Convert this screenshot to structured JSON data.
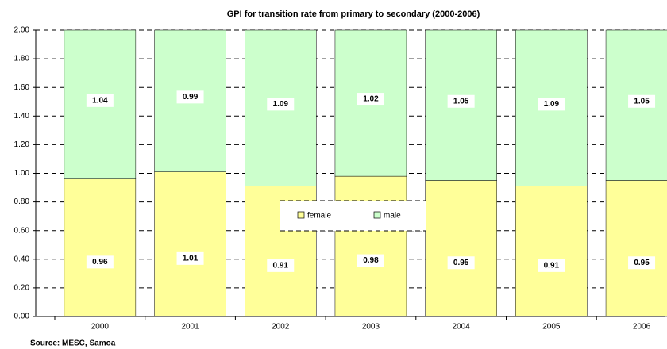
{
  "chart_data": {
    "type": "stacked_bar",
    "title": "GPI for transition rate from primary to secondary (2000-2006)",
    "source": "Source: MESC, Samoa",
    "categories": [
      "2000",
      "2001",
      "2002",
      "2003",
      "2004",
      "2005",
      "2006"
    ],
    "series": [
      {
        "name": "female",
        "color": "#ffff99",
        "values": [
          0.96,
          1.01,
          0.91,
          0.98,
          0.95,
          0.91,
          0.95
        ]
      },
      {
        "name": "male",
        "color": "#ccffcc",
        "values": [
          1.04,
          0.99,
          1.09,
          1.02,
          1.05,
          1.09,
          1.05
        ]
      }
    ],
    "ylim": [
      0,
      2
    ],
    "yticks": [
      {
        "value": 0,
        "label": "0.00"
      },
      {
        "value": 0.2,
        "label": "0.20"
      },
      {
        "value": 0.4,
        "label": "0.40"
      },
      {
        "value": 0.6,
        "label": "0.60"
      },
      {
        "value": 0.8,
        "label": "0.80"
      },
      {
        "value": 1,
        "label": "1.00"
      },
      {
        "value": 1.2,
        "label": "1.20"
      },
      {
        "value": 1.4,
        "label": "1.40"
      },
      {
        "value": 1.6,
        "label": "1.60"
      },
      {
        "value": 1.8,
        "label": "1.80"
      },
      {
        "value": 2,
        "label": "2.00"
      }
    ],
    "grid": true
  }
}
